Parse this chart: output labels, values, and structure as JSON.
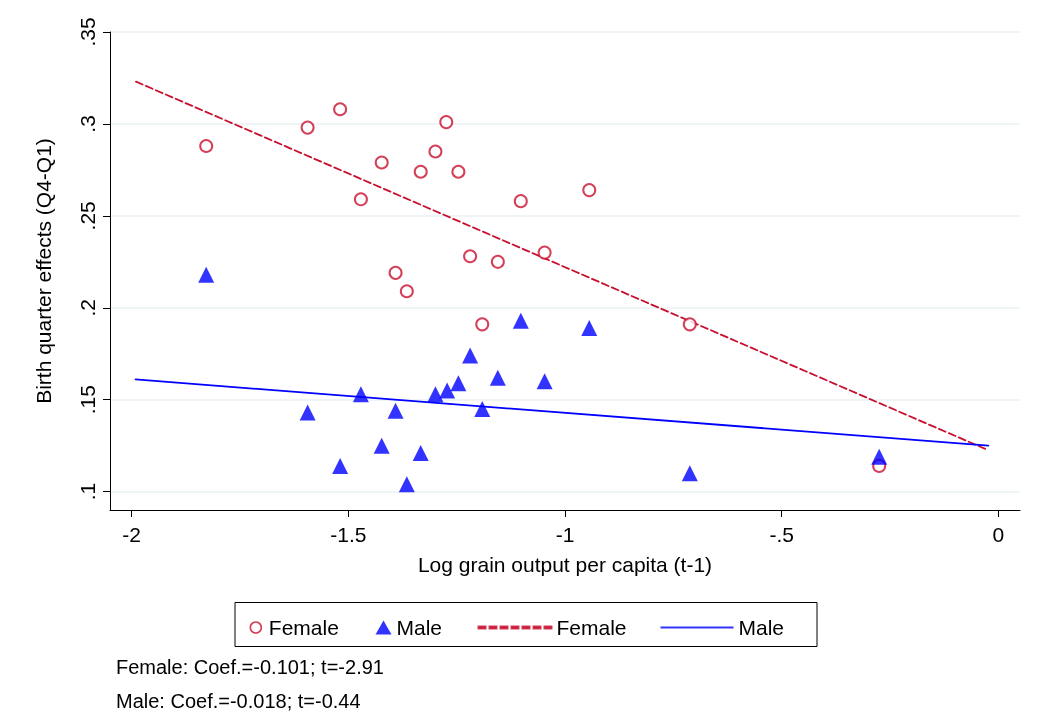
{
  "chart_data": {
    "type": "scatter",
    "xlabel": "Log grain output per capita (t-1)",
    "ylabel": "Birth quarter effects (Q4-Q1)",
    "xlim": [
      -2.05,
      0.05
    ],
    "xticks": [
      -2,
      -1.5,
      -1,
      {
        "value": -0.5,
        "label": "-.5"
      },
      0
    ],
    "ylim": [
      0.09,
      0.35
    ],
    "yticks": [
      {
        "value": 0.1,
        "label": ".1"
      },
      {
        "value": 0.15,
        "label": ".15"
      },
      {
        "value": 0.2,
        "label": ".2"
      },
      {
        "value": 0.25,
        "label": ".25"
      },
      {
        "value": 0.3,
        "label": ".3"
      },
      {
        "value": 0.35,
        "label": ".35"
      }
    ],
    "grid": "y",
    "legend": "bottom",
    "annotations": [
      "Female: Coef.=-0.101; t=-2.91",
      "Male: Coef.=-0.018; t=-0.44"
    ],
    "series": [
      {
        "name": "Female",
        "marker": "circle",
        "color": "#c8102e",
        "x": [
          -1.828,
          -1.594,
          -1.519,
          -1.423,
          -1.471,
          -1.333,
          -1.299,
          -1.274,
          -1.246,
          -1.391,
          -1.365,
          -1.219,
          -1.155,
          -1.191,
          -1.102,
          -1.047,
          -0.944,
          -0.712,
          -0.275
        ],
        "values": [
          0.288,
          0.298,
          0.308,
          0.279,
          0.259,
          0.274,
          0.285,
          0.301,
          0.274,
          0.219,
          0.209,
          0.228,
          0.225,
          0.191,
          0.258,
          0.23,
          0.264,
          0.191,
          0.114
        ]
      },
      {
        "name": "Male",
        "marker": "triangle",
        "color": "#0000ff",
        "x": [
          -1.828,
          -1.594,
          -1.519,
          -1.471,
          -1.423,
          -1.391,
          -1.365,
          -1.333,
          -1.299,
          -1.272,
          -1.246,
          -1.219,
          -1.191,
          -1.155,
          -1.102,
          -1.047,
          -0.944,
          -0.712,
          -0.275
        ],
        "values": [
          0.218,
          0.143,
          0.114,
          0.153,
          0.125,
          0.144,
          0.104,
          0.121,
          0.153,
          0.155,
          0.159,
          0.174,
          0.145,
          0.162,
          0.193,
          0.16,
          0.189,
          0.11,
          0.119
        ]
      },
      {
        "name": "Female",
        "type": "line",
        "line_style": "dashed",
        "color": "#c8102e",
        "x": [
          -1.99,
          -0.023
        ],
        "values": [
          0.323,
          0.1225
        ]
      },
      {
        "name": "Male",
        "type": "line",
        "line_style": "solid",
        "color": "#0000ff",
        "x": [
          -1.991,
          -0.023
        ],
        "values": [
          0.161,
          0.125
        ]
      }
    ]
  }
}
